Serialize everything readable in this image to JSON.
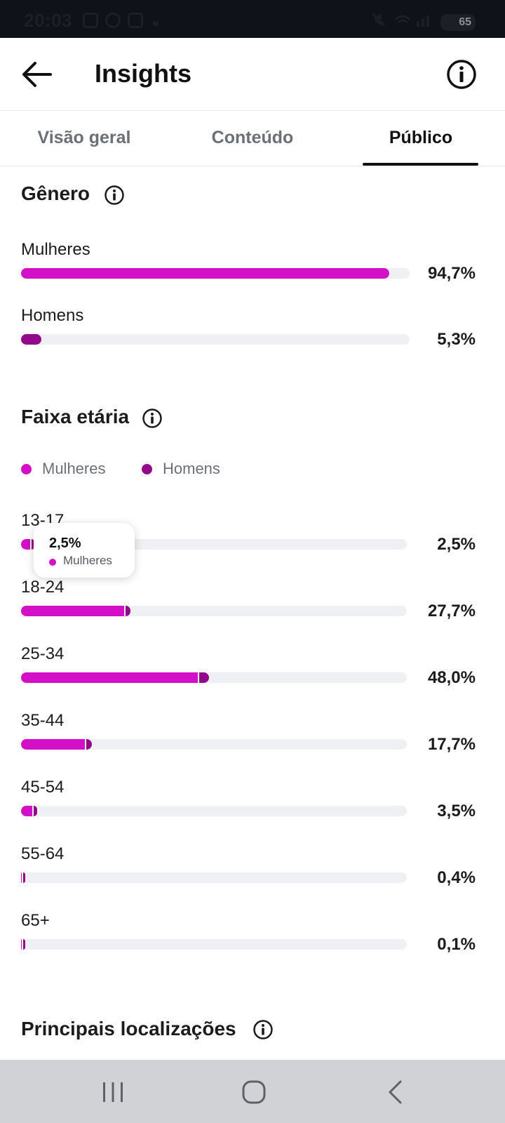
{
  "status_bar": {
    "time": "20:03",
    "battery": "65"
  },
  "header": {
    "title": "Insights"
  },
  "tabs": [
    {
      "label": "Visão geral",
      "active": false
    },
    {
      "label": "Conteúdo",
      "active": false
    },
    {
      "label": "Público",
      "active": true
    }
  ],
  "gender": {
    "title": "Gênero",
    "rows": [
      {
        "label": "Mulheres",
        "value": 94.7,
        "display": "94,7%",
        "color": "#d30fc7"
      },
      {
        "label": "Homens",
        "value": 5.3,
        "display": "5,3%",
        "color": "#920a8b"
      }
    ]
  },
  "age": {
    "title": "Faixa etária",
    "legend": [
      {
        "label": "Mulheres",
        "color": "#d30fc7"
      },
      {
        "label": "Homens",
        "color": "#920a8b"
      }
    ],
    "rows": [
      {
        "label": "13-17",
        "women": 2.4,
        "men": 0.1,
        "display": "2,5%"
      },
      {
        "label": "18-24",
        "women": 26.8,
        "men": 0.9,
        "display": "27,7%"
      },
      {
        "label": "25-34",
        "women": 45.8,
        "men": 2.2,
        "display": "48,0%"
      },
      {
        "label": "35-44",
        "women": 16.5,
        "men": 1.2,
        "display": "17,7%"
      },
      {
        "label": "45-54",
        "women": 2.9,
        "men": 0.6,
        "display": "3,5%"
      },
      {
        "label": "55-64",
        "women": 0.2,
        "men": 0.2,
        "display": "0,4%"
      },
      {
        "label": "65+",
        "women": 0.05,
        "men": 0.05,
        "display": "0,1%"
      }
    ],
    "tooltip": {
      "value": "2,5%",
      "label": "Mulheres"
    }
  },
  "locations": {
    "title": "Principais localizações"
  }
}
